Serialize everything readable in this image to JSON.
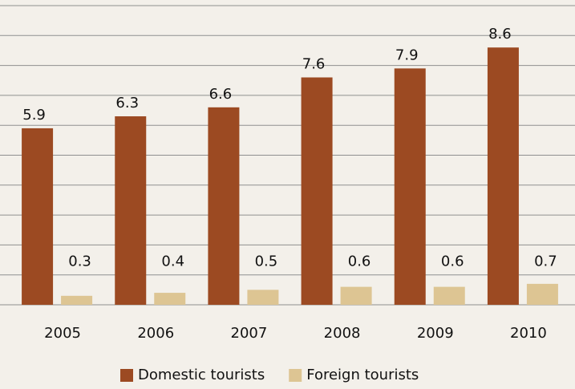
{
  "chart_data": {
    "type": "bar",
    "categories": [
      "2005",
      "2006",
      "2007",
      "2008",
      "2009",
      "2010"
    ],
    "series": [
      {
        "name": "Domestic tourists",
        "color": "#9c4a22",
        "values": [
          5.9,
          6.3,
          6.6,
          7.6,
          7.9,
          8.6
        ]
      },
      {
        "name": "Foreign tourists",
        "color": "#ddc593",
        "values": [
          0.3,
          0.4,
          0.5,
          0.6,
          0.6,
          0.7
        ]
      }
    ],
    "ylim": [
      0,
      10
    ],
    "yticks": [
      0,
      1,
      2,
      3,
      4,
      5,
      6,
      7,
      8,
      9,
      10
    ],
    "grid": true,
    "legend": "bottom"
  }
}
